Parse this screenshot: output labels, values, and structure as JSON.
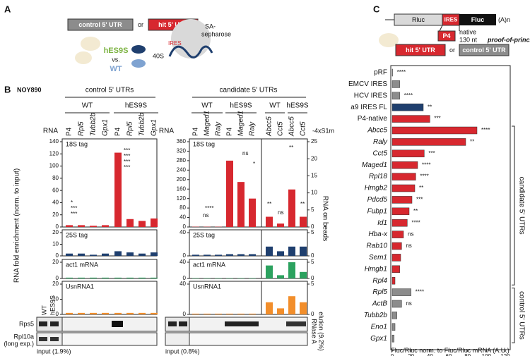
{
  "panel_a": {
    "label": "A",
    "control_box": "control 5' UTR",
    "or": "or",
    "hit_box": "hit 5' UTR",
    "sepharose": [
      "SA-",
      "sepharose"
    ],
    "mutant": "hES9S",
    "vs": "vs.",
    "wild_type": "WT",
    "subunit": "40S",
    "ires": "IRES"
  },
  "panel_b": {
    "label": "B",
    "strain": "NOY890",
    "rna": "RNA",
    "y_title": "RNA fold enrichment (norm. to input)",
    "y2_title": "RNA on beads",
    "tag_note": "-4xS1m",
    "left": {
      "header": "control 5' UTRs",
      "groups": [
        "WT",
        "hES9S"
      ],
      "columns": [
        "P4",
        "Rpl5",
        "Tubb2b",
        "Gpx1",
        "P4",
        "Rpl5",
        "Tubb2b",
        "Gpx1"
      ],
      "rows": [
        {
          "label": "18S tag",
          "color": "#d7282f",
          "ylim": [
            0,
            140
          ],
          "yticks": [
            0,
            20,
            40,
            60,
            80,
            100,
            120,
            140
          ],
          "values": [
            3,
            3,
            2,
            3,
            122,
            13,
            10,
            14
          ]
        },
        {
          "label": "25S tag",
          "color": "#1f3f6e",
          "ylim": [
            0,
            20
          ],
          "yticks": [
            0,
            10,
            20
          ],
          "values": [
            2,
            2,
            1,
            2,
            4,
            3,
            2,
            3
          ]
        },
        {
          "label": "act1 mRNA",
          "color": "#2ca25f",
          "ylim": [
            0,
            20
          ],
          "yticks": [
            0,
            20
          ],
          "values": [
            1,
            1,
            1,
            1,
            1,
            1,
            1,
            1
          ]
        },
        {
          "label": "UsnRNA1",
          "color": "#f28e2b",
          "ylim": [
            0,
            20
          ],
          "yticks": [
            0,
            10,
            20
          ],
          "values": [
            1,
            1,
            1,
            1,
            1,
            1,
            1,
            1
          ]
        }
      ],
      "annotations": [
        "*",
        "***",
        "***",
        "***",
        "***",
        "***",
        "***"
      ]
    },
    "right": {
      "header": "candidate 5' UTRs",
      "groups": [
        "WT",
        "hES9S",
        "WT",
        "hES9S"
      ],
      "columns": [
        "P4",
        "Maged1",
        "Raly",
        "P4",
        "Maged1",
        "Raly",
        "Abcc5",
        "Cct5",
        "Abcc5",
        "Cct5"
      ],
      "rows": [
        {
          "label": "18S tag",
          "color": "#d7282f",
          "ylim": [
            0,
            360
          ],
          "yticks": [
            0,
            40,
            80,
            120,
            160,
            200,
            240,
            280,
            320,
            360
          ],
          "values": [
            1,
            1,
            1,
            280,
            190,
            120
          ],
          "y2lim": [
            0,
            25
          ],
          "y2ticks": [
            0,
            5,
            10,
            15,
            20,
            25
          ],
          "y2_values": [
            3,
            1,
            11,
            3
          ]
        },
        {
          "label": "25S tag",
          "color": "#1f3f6e",
          "ylim": [
            0,
            40
          ],
          "yticks": [
            0,
            40
          ],
          "values": [
            2,
            2,
            2,
            3,
            3,
            3
          ],
          "y2lim": [
            0,
            5
          ],
          "y2ticks": [
            0,
            5
          ],
          "y2_values": [
            2,
            1,
            2,
            2
          ]
        },
        {
          "label": "act1 mRNA",
          "color": "#2ca25f",
          "ylim": [
            0,
            40
          ],
          "yticks": [
            0,
            40
          ],
          "values": [
            1,
            1,
            1,
            1,
            1,
            1
          ],
          "y2lim": [
            0,
            5
          ],
          "y2ticks": [
            0,
            5
          ],
          "y2_values": [
            4,
            1,
            5,
            2
          ]
        },
        {
          "label": "UsnRNA1",
          "color": "#f28e2b",
          "ylim": [
            0,
            40
          ],
          "yticks": [
            0,
            40
          ],
          "values": [
            1,
            1,
            1,
            1,
            1,
            1
          ],
          "y2lim": [
            0,
            5
          ],
          "y2ticks": [
            0,
            5
          ],
          "y2_values": [
            2,
            1,
            3,
            2
          ]
        }
      ],
      "annotations": [
        "****",
        "ns",
        "ns",
        "*",
        "**",
        "ns",
        "**",
        "**"
      ]
    },
    "blots": {
      "lanes": [
        "WT",
        "hES9S"
      ],
      "rows": [
        "Rps5",
        "Rpl10a",
        "(long exp.)"
      ],
      "input_left": "input (1.9%)",
      "input_right": "input (0.8%)",
      "elution": [
        "RNase A",
        "elution (9.2%)"
      ]
    }
  },
  "panel_c": {
    "label": "C",
    "construct": {
      "rluc": "Rluc",
      "ires": "IRES",
      "fluc": "Fluc",
      "tail": "(A)n",
      "p4": "P4",
      "native": "native",
      "length": "130 nt",
      "proof": "proof-of-principle",
      "hit": "hit 5' UTR",
      "or": "or",
      "control": "control 5' UTR"
    },
    "chart_data": {
      "type": "bar",
      "categories": [
        "pRF",
        "EMCV IRES",
        "HCV IRES",
        "a9 IRES FL",
        "P4-native",
        "Abcc5",
        "Raly",
        "Cct5",
        "Maged1",
        "Rpl18",
        "Hmgb2",
        "Pdcd5",
        "Fubp1",
        "Id1",
        "Hba-x",
        "Rab10",
        "Sem1",
        "Hmgb1",
        "Rpl4",
        "Rpl5",
        "ActB",
        "Tubb2b",
        "Eno1",
        "Gpx1"
      ],
      "values": [
        0.5,
        8,
        8,
        33,
        40,
        90,
        78,
        34,
        27,
        25,
        24,
        21,
        18,
        16,
        12,
        10,
        9,
        8,
        3,
        20,
        10,
        5,
        3,
        2
      ],
      "colors": [
        "#ffffff",
        "#8c8c8c",
        "#8c8c8c",
        "#1f3f6e",
        "#d7282f",
        "#d7282f",
        "#d7282f",
        "#d7282f",
        "#d7282f",
        "#d7282f",
        "#d7282f",
        "#d7282f",
        "#d7282f",
        "#d7282f",
        "#d7282f",
        "#d7282f",
        "#d7282f",
        "#d7282f",
        "#d7282f",
        "#8c8c8c",
        "#8c8c8c",
        "#8c8c8c",
        "#8c8c8c",
        "#8c8c8c"
      ],
      "significance": [
        {
          "index": 0,
          "label": "****"
        },
        {
          "index": 2,
          "label": "****"
        },
        {
          "index": 3,
          "label": "**"
        },
        {
          "index": 4,
          "label": "***"
        },
        {
          "index": 5,
          "label": "****"
        },
        {
          "index": 6,
          "label": "**"
        },
        {
          "index": 7,
          "label": "***"
        },
        {
          "index": 8,
          "label": "****"
        },
        {
          "index": 9,
          "label": "****"
        },
        {
          "index": 10,
          "label": "**"
        },
        {
          "index": 11,
          "label": "***"
        },
        {
          "index": 12,
          "label": "**"
        },
        {
          "index": 13,
          "label": "****"
        },
        {
          "index": 14,
          "label": "ns"
        },
        {
          "index": 15,
          "label": "ns"
        },
        {
          "index": 19,
          "label": "****"
        },
        {
          "index": 20,
          "label": "ns"
        }
      ],
      "xlim": [
        0,
        120
      ],
      "xticks": [
        0,
        20,
        40,
        60,
        80,
        100,
        120
      ],
      "x_label": "Fluc/Rluc norm. to Fluc/Rluc mRNA (A.U.)",
      "brackets": [
        "candidate 5' UTRs",
        "control 5' UTRs"
      ]
    }
  }
}
